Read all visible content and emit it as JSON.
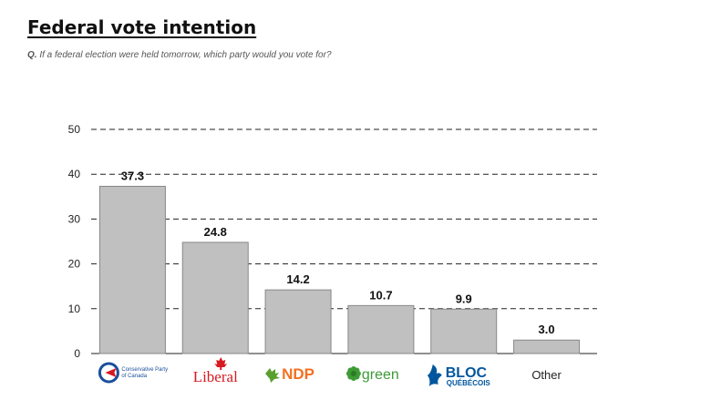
{
  "title": "Federal vote intention",
  "question_label": "Q.",
  "question_text": "If a federal election were held tomorrow, which party would you vote for?",
  "chart_data": {
    "type": "bar",
    "categories": [
      "Conservative Party of Canada",
      "Liberal",
      "NDP",
      "green",
      "BLOC QUÉBÉCOIS",
      "Other"
    ],
    "category_labels": [
      {
        "text": "Conservative Party of Canada",
        "color": "#1a4f9c",
        "font": "sans",
        "weight": "normal",
        "size": 6,
        "icon": "conservative-logo-icon"
      },
      {
        "text": "Liberal",
        "color": "#d71920",
        "font": "serif",
        "weight": "normal",
        "size": 17,
        "icon": "maple-leaf-icon"
      },
      {
        "text": "NDP",
        "color": "#f37021",
        "font": "sans",
        "weight": "bold",
        "size": 17,
        "icon": "ndp-leaf-icon"
      },
      {
        "text": "green",
        "color": "#3d9b35",
        "font": "sans",
        "weight": "normal",
        "size": 16,
        "icon": "green-flower-icon"
      },
      {
        "text": "BLOC",
        "subtext": "QUÉBÉCOIS",
        "color": "#00569e",
        "font": "sans",
        "weight": "bold",
        "size": 16,
        "icon": "bloc-fleur-icon"
      },
      {
        "text": "Other",
        "color": "#222222",
        "font": "sans",
        "weight": "normal",
        "size": 13,
        "icon": ""
      }
    ],
    "values": [
      37.3,
      24.8,
      14.2,
      10.7,
      9.9,
      3.0
    ],
    "data_labels": [
      "37.3",
      "24.8",
      "14.2",
      "10.7",
      "9.9",
      "3.0"
    ],
    "yticks": [
      "0",
      "10",
      "20",
      "30",
      "40",
      "50"
    ],
    "ylim": [
      0,
      50
    ],
    "grid": true,
    "bar_color": "#c0c0c0",
    "bar_stroke": "#888888",
    "grid_color": "#222222"
  }
}
